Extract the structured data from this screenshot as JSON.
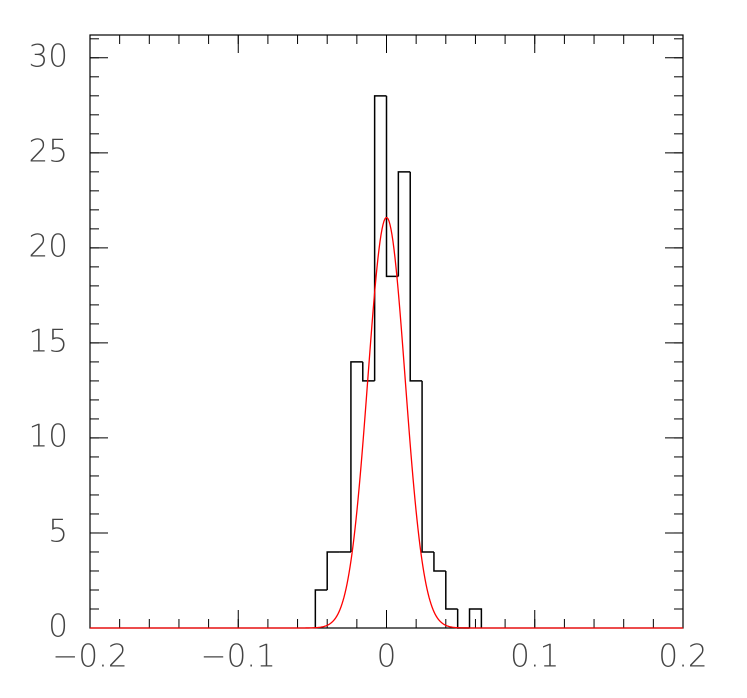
{
  "chart_data": {
    "type": "histogram",
    "bins": [
      -0.048,
      -0.04,
      -0.032,
      -0.024,
      -0.016,
      -0.008,
      0,
      0.008,
      0.016,
      0.024,
      0.032,
      0.04,
      0.048,
      0.056,
      0.064
    ],
    "values": [
      2,
      4,
      4,
      14,
      13,
      28,
      18.5,
      24,
      13,
      4,
      3,
      1,
      0,
      1
    ],
    "color": "#000000",
    "fit": {
      "type": "gaussian",
      "amplitude": 21.6,
      "mean": 0,
      "sigma": 0.0126,
      "color": "#ff0000"
    },
    "xlim": [
      -0.2,
      0.2
    ],
    "xticks": [
      {
        "value": -0.2,
        "label": "−0.2"
      },
      {
        "value": -0.1,
        "label": "−0.1"
      },
      0,
      0.1,
      0.2
    ],
    "xminor": 0.02,
    "ylim": [
      0,
      31.2
    ],
    "yticks": [
      0,
      5,
      10,
      15,
      20,
      25,
      30
    ],
    "yminor": 1
  }
}
